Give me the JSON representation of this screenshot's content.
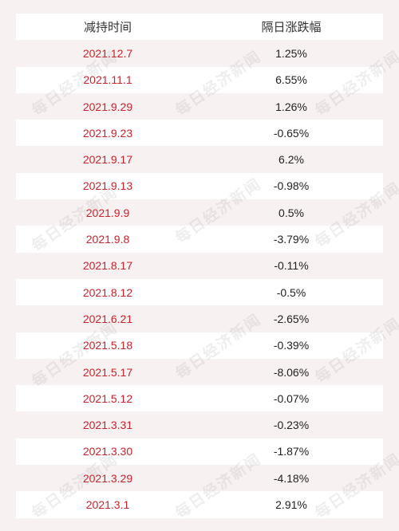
{
  "table": {
    "headers": [
      "减持时间",
      "隔日涨跌幅"
    ],
    "rows": [
      {
        "date": "2021.12.7",
        "change": "1.25%"
      },
      {
        "date": "2021.11.1",
        "change": "6.55%"
      },
      {
        "date": "2021.9.29",
        "change": "1.26%"
      },
      {
        "date": "2021.9.23",
        "change": "-0.65%"
      },
      {
        "date": "2021.9.17",
        "change": "6.2%"
      },
      {
        "date": "2021.9.13",
        "change": "-0.98%"
      },
      {
        "date": "2021.9.9",
        "change": "0.5%"
      },
      {
        "date": "2021.9.8",
        "change": "-3.79%"
      },
      {
        "date": "2021.8.17",
        "change": "-0.11%"
      },
      {
        "date": "2021.8.12",
        "change": "-0.5%"
      },
      {
        "date": "2021.6.21",
        "change": "-2.65%"
      },
      {
        "date": "2021.5.18",
        "change": "-0.39%"
      },
      {
        "date": "2021.5.17",
        "change": "-8.06%"
      },
      {
        "date": "2021.5.12",
        "change": "-0.07%"
      },
      {
        "date": "2021.3.31",
        "change": "-0.23%"
      },
      {
        "date": "2021.3.30",
        "change": "-1.87%"
      },
      {
        "date": "2021.3.29",
        "change": "-4.18%"
      },
      {
        "date": "2021.3.1",
        "change": "2.91%"
      }
    ]
  },
  "watermark": {
    "text": "每日经济新闻"
  },
  "colors": {
    "date_text": "#c8232c",
    "value_text": "#222222",
    "row_white": "#ffffff",
    "row_pink": "#f8f1f1"
  }
}
